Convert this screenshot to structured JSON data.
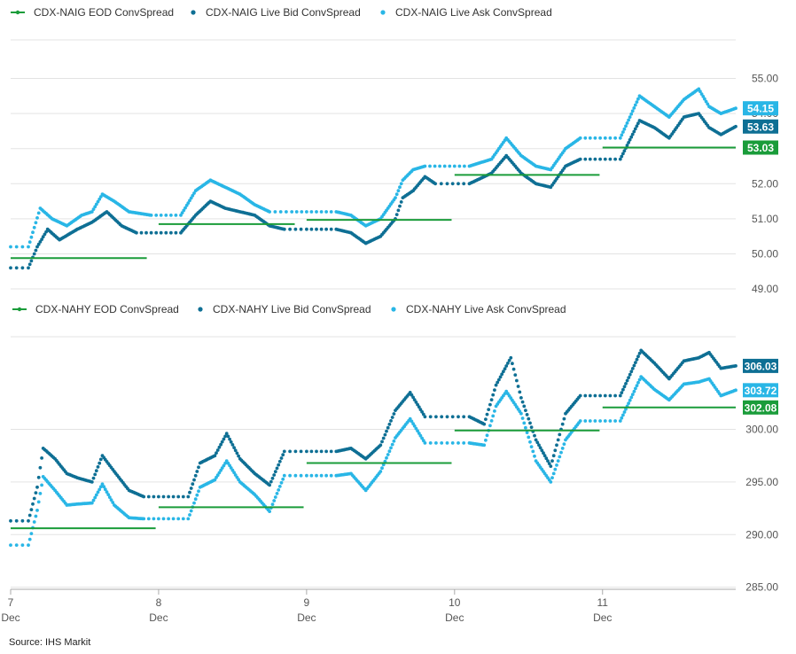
{
  "source": "Source: IHS  Markit",
  "colors": {
    "eod": "#1a9c3a",
    "bid": "#0e6f94",
    "ask": "#29b6e6",
    "grid": "#e3e3e3",
    "axis": "#aaaaaa"
  },
  "x_axis": {
    "ticks": [
      {
        "x": 7,
        "line1": "7",
        "line2": "Dec"
      },
      {
        "x": 8,
        "line1": "8",
        "line2": "Dec"
      },
      {
        "x": 9,
        "line1": "9",
        "line2": "Dec"
      },
      {
        "x": 10,
        "line1": "10",
        "line2": "Dec"
      },
      {
        "x": 11,
        "line1": "11",
        "line2": "Dec"
      }
    ],
    "range": [
      7.0,
      11.9
    ]
  },
  "chart_data": [
    {
      "type": "line",
      "legend_placement": "top-left",
      "ylim": [
        48.9,
        56.1
      ],
      "yticks": [
        "49.00",
        "50.00",
        "51.00",
        "52.00",
        "53.00",
        "54.00",
        "55.00"
      ],
      "grid": true,
      "last_values": {
        "ask": "54.15",
        "bid": "53.63",
        "eod": "53.03"
      },
      "series": [
        {
          "key": "eod",
          "name": "CDX-NAIG EOD ConvSpread",
          "steps": [
            [
              7.0,
              7.92,
              49.88
            ],
            [
              8.0,
              8.92,
              50.85
            ],
            [
              9.0,
              9.98,
              50.97
            ],
            [
              10.0,
              10.98,
              52.25
            ],
            [
              11.0,
              11.9,
              53.03
            ]
          ]
        },
        {
          "key": "bid",
          "name": "CDX-NAIG Live Bid ConvSpread",
          "points": [
            [
              7.0,
              49.6
            ],
            [
              7.12,
              49.6
            ],
            [
              7.18,
              50.2
            ],
            [
              7.25,
              50.7
            ],
            [
              7.33,
              50.4
            ],
            [
              7.45,
              50.7
            ],
            [
              7.55,
              50.9
            ],
            [
              7.65,
              51.2
            ],
            [
              7.75,
              50.8
            ],
            [
              7.85,
              50.6
            ],
            [
              7.95,
              50.6
            ],
            [
              8.15,
              50.6
            ],
            [
              8.25,
              51.1
            ],
            [
              8.35,
              51.5
            ],
            [
              8.45,
              51.3
            ],
            [
              8.55,
              51.2
            ],
            [
              8.65,
              51.1
            ],
            [
              8.75,
              50.8
            ],
            [
              8.85,
              50.7
            ],
            [
              9.0,
              50.7
            ],
            [
              9.2,
              50.7
            ],
            [
              9.3,
              50.6
            ],
            [
              9.4,
              50.3
            ],
            [
              9.5,
              50.5
            ],
            [
              9.6,
              51.0
            ],
            [
              9.65,
              51.6
            ],
            [
              9.72,
              51.8
            ],
            [
              9.8,
              52.2
            ],
            [
              9.87,
              52.0
            ],
            [
              9.95,
              52.0
            ],
            [
              10.1,
              52.0
            ],
            [
              10.25,
              52.3
            ],
            [
              10.35,
              52.8
            ],
            [
              10.45,
              52.3
            ],
            [
              10.55,
              52.0
            ],
            [
              10.65,
              51.9
            ],
            [
              10.75,
              52.5
            ],
            [
              10.85,
              52.7
            ],
            [
              10.95,
              52.7
            ],
            [
              11.12,
              52.7
            ],
            [
              11.25,
              53.8
            ],
            [
              11.35,
              53.6
            ],
            [
              11.45,
              53.3
            ],
            [
              11.55,
              53.9
            ],
            [
              11.65,
              54.0
            ],
            [
              11.72,
              53.6
            ],
            [
              11.8,
              53.4
            ],
            [
              11.9,
              53.63
            ]
          ]
        },
        {
          "key": "ask",
          "name": "CDX-NAIG Live Ask ConvSpread",
          "points": [
            [
              7.0,
              50.2
            ],
            [
              7.12,
              50.2
            ],
            [
              7.2,
              51.3
            ],
            [
              7.28,
              51.0
            ],
            [
              7.38,
              50.8
            ],
            [
              7.48,
              51.1
            ],
            [
              7.55,
              51.2
            ],
            [
              7.62,
              51.7
            ],
            [
              7.7,
              51.5
            ],
            [
              7.8,
              51.2
            ],
            [
              7.95,
              51.1
            ],
            [
              8.15,
              51.1
            ],
            [
              8.25,
              51.8
            ],
            [
              8.35,
              52.1
            ],
            [
              8.45,
              51.9
            ],
            [
              8.55,
              51.7
            ],
            [
              8.65,
              51.4
            ],
            [
              8.75,
              51.2
            ],
            [
              8.9,
              51.2
            ],
            [
              9.0,
              51.2
            ],
            [
              9.2,
              51.2
            ],
            [
              9.3,
              51.1
            ],
            [
              9.4,
              50.8
            ],
            [
              9.5,
              51.0
            ],
            [
              9.6,
              51.6
            ],
            [
              9.65,
              52.1
            ],
            [
              9.72,
              52.4
            ],
            [
              9.8,
              52.5
            ],
            [
              9.9,
              52.5
            ],
            [
              10.1,
              52.5
            ],
            [
              10.25,
              52.7
            ],
            [
              10.35,
              53.3
            ],
            [
              10.45,
              52.8
            ],
            [
              10.55,
              52.5
            ],
            [
              10.65,
              52.4
            ],
            [
              10.75,
              53.0
            ],
            [
              10.85,
              53.3
            ],
            [
              10.95,
              53.3
            ],
            [
              11.12,
              53.3
            ],
            [
              11.25,
              54.5
            ],
            [
              11.35,
              54.2
            ],
            [
              11.45,
              53.9
            ],
            [
              11.55,
              54.4
            ],
            [
              11.65,
              54.7
            ],
            [
              11.72,
              54.2
            ],
            [
              11.8,
              54.0
            ],
            [
              11.9,
              54.15
            ]
          ]
        }
      ]
    },
    {
      "type": "line",
      "legend_placement": "top-left",
      "ylim": [
        284.8,
        308.8
      ],
      "yticks": [
        "285.00",
        "290.00",
        "295.00",
        "300.00"
      ],
      "grid": true,
      "last_values": {
        "bid": "306.03",
        "ask": "303.72",
        "eod": "302.08"
      },
      "series": [
        {
          "key": "eod",
          "name": "CDX-NAHY EOD ConvSpread",
          "steps": [
            [
              7.0,
              7.98,
              290.6
            ],
            [
              8.0,
              8.98,
              292.6
            ],
            [
              9.0,
              9.98,
              296.8
            ],
            [
              10.0,
              10.98,
              299.9
            ],
            [
              11.0,
              11.9,
              302.08
            ]
          ]
        },
        {
          "key": "bid",
          "name": "CDX-NAHY Live Bid ConvSpread",
          "points": [
            [
              7.0,
              291.3
            ],
            [
              7.12,
              291.3
            ],
            [
              7.18,
              294.5
            ],
            [
              7.22,
              298.2
            ],
            [
              7.3,
              297.2
            ],
            [
              7.38,
              295.8
            ],
            [
              7.45,
              295.4
            ],
            [
              7.55,
              295.0
            ],
            [
              7.62,
              297.5
            ],
            [
              7.7,
              296.0
            ],
            [
              7.8,
              294.2
            ],
            [
              7.9,
              293.6
            ],
            [
              8.0,
              293.6
            ],
            [
              8.2,
              293.6
            ],
            [
              8.28,
              296.8
            ],
            [
              8.38,
              297.5
            ],
            [
              8.46,
              299.6
            ],
            [
              8.55,
              297.2
            ],
            [
              8.65,
              295.8
            ],
            [
              8.75,
              294.7
            ],
            [
              8.85,
              297.9
            ],
            [
              9.0,
              297.9
            ],
            [
              9.2,
              297.9
            ],
            [
              9.3,
              298.2
            ],
            [
              9.4,
              297.2
            ],
            [
              9.5,
              298.5
            ],
            [
              9.6,
              301.8
            ],
            [
              9.7,
              303.5
            ],
            [
              9.8,
              301.2
            ],
            [
              9.95,
              301.2
            ],
            [
              10.1,
              301.2
            ],
            [
              10.2,
              300.5
            ],
            [
              10.28,
              304.2
            ],
            [
              10.38,
              306.8
            ],
            [
              10.45,
              303.0
            ],
            [
              10.55,
              299.0
            ],
            [
              10.65,
              296.5
            ],
            [
              10.75,
              301.5
            ],
            [
              10.85,
              303.2
            ],
            [
              10.95,
              303.2
            ],
            [
              11.12,
              303.2
            ],
            [
              11.26,
              307.5
            ],
            [
              11.35,
              306.3
            ],
            [
              11.45,
              304.8
            ],
            [
              11.55,
              306.5
            ],
            [
              11.65,
              306.8
            ],
            [
              11.72,
              307.3
            ],
            [
              11.8,
              305.8
            ],
            [
              11.9,
              306.03
            ]
          ]
        },
        {
          "key": "ask",
          "name": "CDX-NAHY Live Ask ConvSpread",
          "points": [
            [
              7.0,
              289.0
            ],
            [
              7.12,
              289.0
            ],
            [
              7.18,
              292.3
            ],
            [
              7.22,
              295.5
            ],
            [
              7.3,
              294.2
            ],
            [
              7.38,
              292.8
            ],
            [
              7.45,
              292.9
            ],
            [
              7.55,
              293.0
            ],
            [
              7.62,
              294.8
            ],
            [
              7.7,
              292.8
            ],
            [
              7.8,
              291.6
            ],
            [
              7.9,
              291.5
            ],
            [
              8.0,
              291.5
            ],
            [
              8.2,
              291.5
            ],
            [
              8.28,
              294.5
            ],
            [
              8.38,
              295.2
            ],
            [
              8.46,
              297.0
            ],
            [
              8.55,
              295.0
            ],
            [
              8.65,
              293.8
            ],
            [
              8.75,
              292.2
            ],
            [
              8.85,
              295.6
            ],
            [
              9.0,
              295.6
            ],
            [
              9.2,
              295.6
            ],
            [
              9.3,
              295.8
            ],
            [
              9.4,
              294.2
            ],
            [
              9.5,
              296.0
            ],
            [
              9.6,
              299.2
            ],
            [
              9.7,
              301.0
            ],
            [
              9.8,
              298.7
            ],
            [
              9.95,
              298.7
            ],
            [
              10.1,
              298.7
            ],
            [
              10.2,
              298.5
            ],
            [
              10.28,
              302.2
            ],
            [
              10.35,
              303.6
            ],
            [
              10.45,
              301.5
            ],
            [
              10.55,
              297.0
            ],
            [
              10.65,
              295.0
            ],
            [
              10.75,
              299.0
            ],
            [
              10.85,
              300.8
            ],
            [
              10.95,
              300.8
            ],
            [
              11.12,
              300.8
            ],
            [
              11.26,
              305.0
            ],
            [
              11.35,
              303.8
            ],
            [
              11.45,
              302.8
            ],
            [
              11.55,
              304.3
            ],
            [
              11.65,
              304.5
            ],
            [
              11.72,
              304.8
            ],
            [
              11.8,
              303.2
            ],
            [
              11.9,
              303.72
            ]
          ]
        }
      ]
    }
  ]
}
